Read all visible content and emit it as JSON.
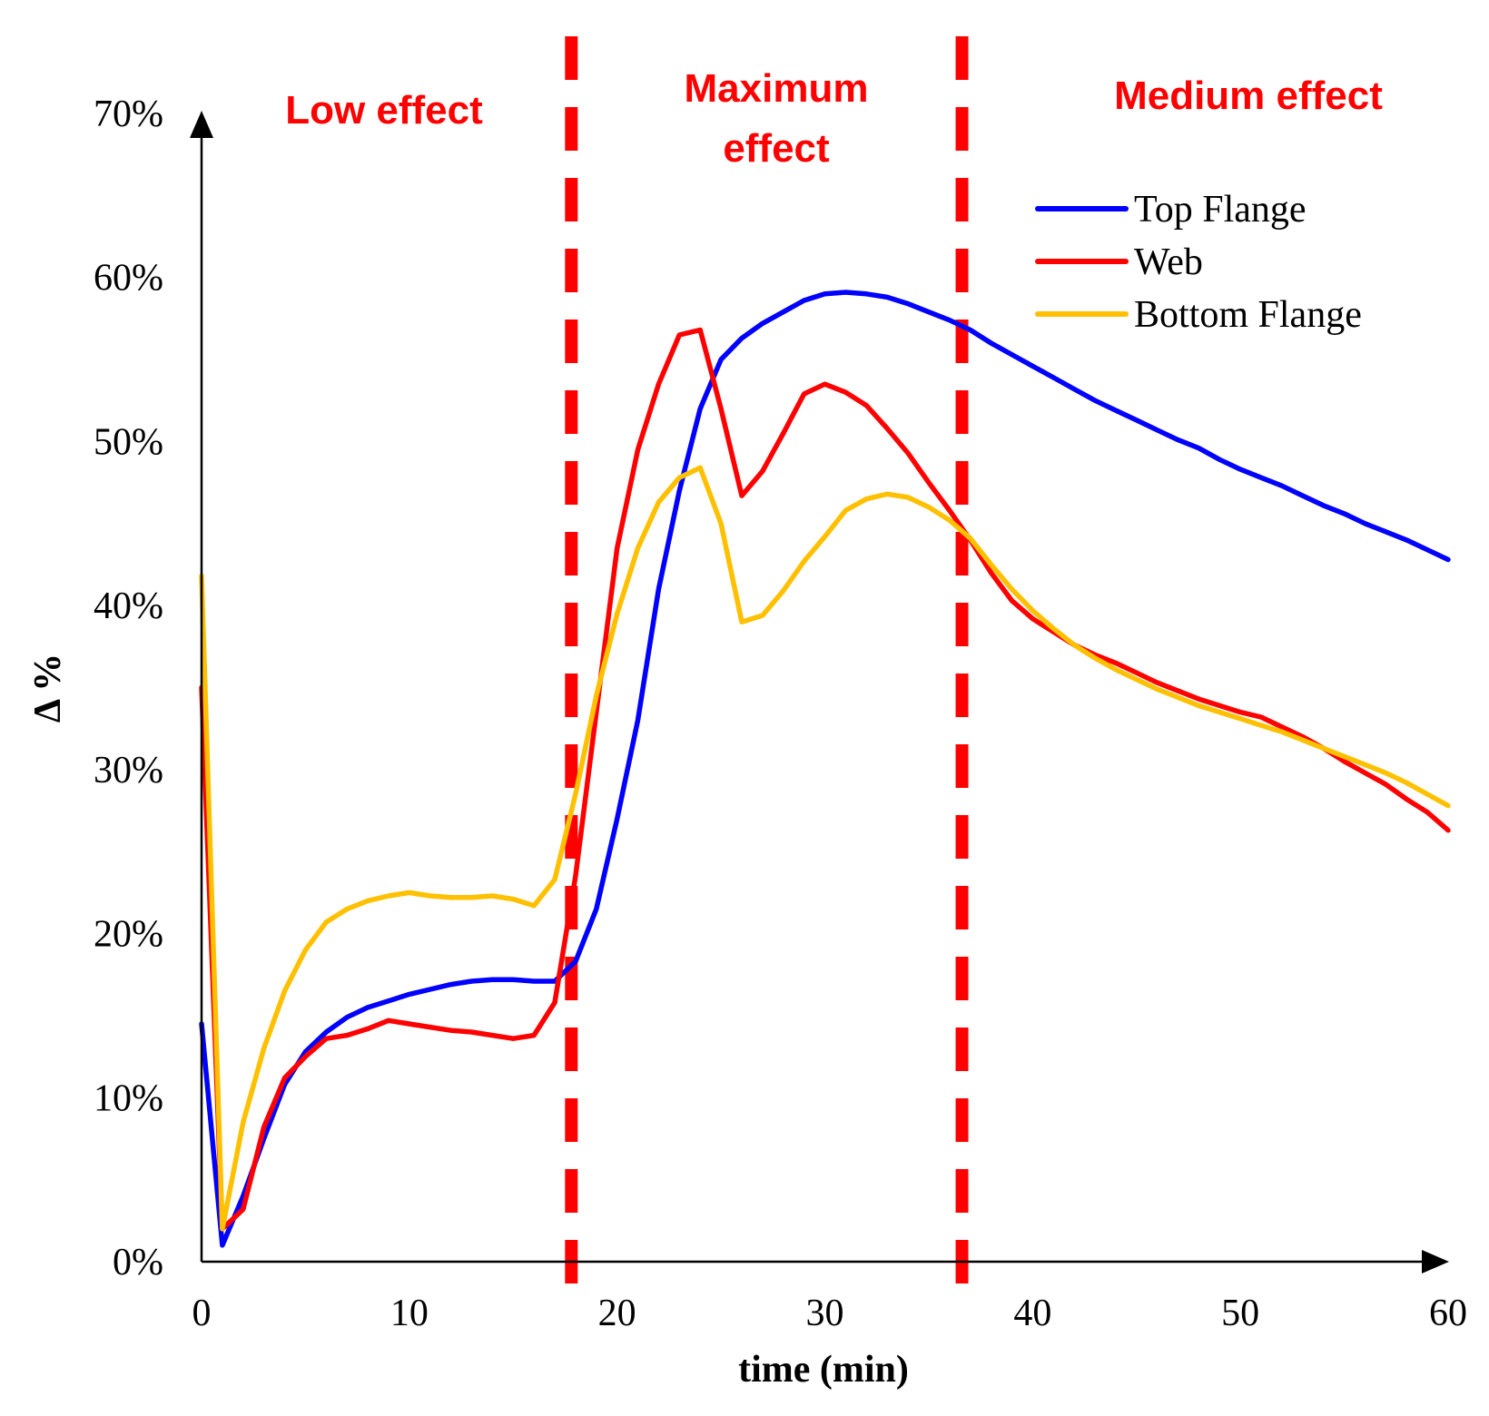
{
  "chart_data": {
    "type": "line",
    "title": "",
    "xlabel": "time (min)",
    "ylabel": "Δ %",
    "xlim": [
      0,
      60
    ],
    "ylim": [
      0,
      70
    ],
    "x_ticks": [
      "0",
      "10",
      "20",
      "30",
      "40",
      "50",
      "60"
    ],
    "y_ticks": [
      "0%",
      "10%",
      "20%",
      "30%",
      "40%",
      "50%",
      "60%",
      "70%"
    ],
    "grid": false,
    "legend_position": "top-right",
    "zones": [
      {
        "label_lines": [
          "Low effect"
        ],
        "from": 0,
        "to": 17.8
      },
      {
        "label_lines": [
          "Maximum",
          "effect"
        ],
        "from": 17.8,
        "to": 36.6
      },
      {
        "label_lines": [
          "Medium effect"
        ],
        "from": 36.6,
        "to": 60
      }
    ],
    "zone_boundaries": [
      17.8,
      36.6
    ],
    "zone_color": "#ff0000",
    "series": [
      {
        "name": "Top Flange",
        "color": "#0000ff",
        "x": [
          0,
          1,
          2,
          3,
          4,
          5,
          6,
          7,
          8,
          9,
          10,
          11,
          12,
          13,
          14,
          15,
          16,
          17,
          18,
          19,
          20,
          21,
          22,
          23,
          24,
          25,
          26,
          27,
          28,
          29,
          30,
          31,
          32,
          33,
          34,
          35,
          36,
          37,
          38,
          39,
          40,
          41,
          42,
          43,
          44,
          45,
          46,
          47,
          48,
          49,
          50,
          51,
          52,
          53,
          54,
          55,
          56,
          57,
          58,
          59,
          60
        ],
        "y": [
          14.5,
          1.0,
          4.0,
          7.5,
          10.8,
          12.8,
          14.0,
          14.9,
          15.5,
          15.9,
          16.3,
          16.6,
          16.9,
          17.1,
          17.2,
          17.2,
          17.1,
          17.1,
          18.3,
          21.5,
          27.0,
          33.0,
          41.0,
          47.0,
          52.0,
          55.0,
          56.3,
          57.2,
          57.9,
          58.6,
          59.0,
          59.1,
          59.0,
          58.8,
          58.4,
          57.9,
          57.4,
          56.8,
          56.0,
          55.3,
          54.6,
          53.9,
          53.2,
          52.5,
          51.9,
          51.3,
          50.7,
          50.1,
          49.6,
          48.9,
          48.3,
          47.8,
          47.3,
          46.7,
          46.1,
          45.6,
          45.0,
          44.5,
          44.0,
          43.4,
          42.8
        ]
      },
      {
        "name": "Web",
        "color": "#ff0000",
        "x": [
          0,
          1,
          2,
          3,
          4,
          5,
          6,
          7,
          8,
          9,
          10,
          11,
          12,
          13,
          14,
          15,
          16,
          17,
          18,
          19,
          20,
          21,
          22,
          23,
          24,
          25,
          26,
          27,
          28,
          29,
          30,
          31,
          32,
          33,
          34,
          35,
          36,
          37,
          38,
          39,
          40,
          41,
          42,
          43,
          44,
          45,
          46,
          47,
          48,
          49,
          50,
          51,
          52,
          53,
          54,
          55,
          56,
          57,
          58,
          59,
          60
        ],
        "y": [
          35.0,
          2.0,
          3.2,
          8.2,
          11.2,
          12.5,
          13.6,
          13.8,
          14.2,
          14.7,
          14.5,
          14.3,
          14.1,
          14.0,
          13.8,
          13.6,
          13.8,
          15.8,
          23.5,
          33.5,
          43.5,
          49.5,
          53.5,
          56.5,
          56.8,
          52.0,
          46.7,
          48.2,
          50.5,
          52.9,
          53.5,
          53.0,
          52.2,
          50.8,
          49.3,
          47.5,
          45.8,
          44.0,
          42.0,
          40.3,
          39.2,
          38.4,
          37.6,
          37.0,
          36.5,
          35.9,
          35.3,
          34.8,
          34.3,
          33.9,
          33.5,
          33.2,
          32.6,
          32.0,
          31.3,
          30.5,
          29.8,
          29.1,
          28.2,
          27.4,
          26.3
        ]
      },
      {
        "name": "Bottom Flange",
        "color": "#ffc000",
        "x": [
          0,
          1,
          2,
          3,
          4,
          5,
          6,
          7,
          8,
          9,
          10,
          11,
          12,
          13,
          14,
          15,
          16,
          17,
          18,
          19,
          20,
          21,
          22,
          23,
          24,
          25,
          26,
          27,
          28,
          29,
          30,
          31,
          32,
          33,
          34,
          35,
          36,
          37,
          38,
          39,
          40,
          41,
          42,
          43,
          44,
          45,
          46,
          47,
          48,
          49,
          50,
          51,
          52,
          53,
          54,
          55,
          56,
          57,
          58,
          59,
          60
        ],
        "y": [
          41.8,
          2.0,
          8.5,
          13.0,
          16.5,
          19.0,
          20.7,
          21.5,
          22.0,
          22.3,
          22.5,
          22.3,
          22.2,
          22.2,
          22.3,
          22.1,
          21.7,
          23.3,
          28.5,
          34.5,
          39.5,
          43.5,
          46.3,
          47.8,
          48.4,
          45.0,
          39.0,
          39.4,
          40.9,
          42.7,
          44.2,
          45.8,
          46.5,
          46.8,
          46.6,
          46.0,
          45.2,
          44.1,
          42.5,
          41.0,
          39.7,
          38.6,
          37.6,
          36.8,
          36.1,
          35.5,
          34.9,
          34.4,
          33.9,
          33.5,
          33.1,
          32.7,
          32.3,
          31.8,
          31.3,
          30.8,
          30.3,
          29.8,
          29.2,
          28.5,
          27.8
        ]
      }
    ]
  }
}
